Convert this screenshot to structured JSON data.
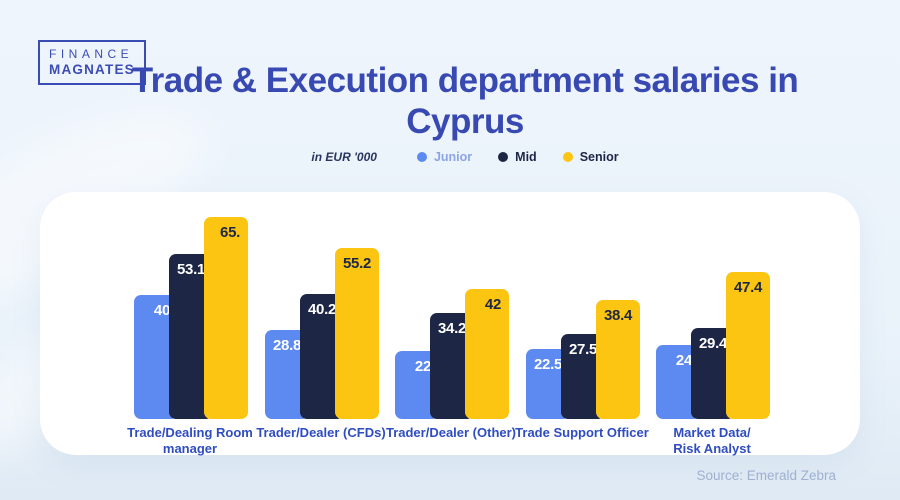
{
  "logo": {
    "line1": "FINANCE",
    "line2": "MAGNATES"
  },
  "title": "Trade & Execution department salaries in Cyprus",
  "legend": {
    "unit_label": "in EUR '000",
    "items": [
      {
        "label": "Junior",
        "color": "#5C8AF0",
        "text_color": "#8CA4E8"
      },
      {
        "label": "Mid",
        "color": "#1D2745",
        "text_color": "#1D2745"
      },
      {
        "label": "Senior",
        "color": "#FCC511",
        "text_color": "#1D2745"
      }
    ]
  },
  "source": "Source: Emerald Zebra",
  "colors": {
    "background": "#EAF3FA",
    "card": "#FFFFFF",
    "title_text": "#3849B2",
    "category_text": "#2F4DC1",
    "junior_bar": "#5C8AF0",
    "mid_bar": "#1D2745",
    "senior_bar": "#FCC511",
    "source_text": "#9FB0D0"
  },
  "chart_data": {
    "type": "bar",
    "title": "Trade & Execution department salaries in Cyprus",
    "unit": "EUR '000",
    "categories": [
      "Trade/Dealing Room\nmanager",
      "Trader/Dealer (CFDs)",
      "Trader/Dealer (Other)",
      "Trade Support Officer",
      "Market Data/\nRisk Analyst"
    ],
    "series": [
      {
        "name": "Junior",
        "color": "#5C8AF0",
        "label_color": "#FFFFFF",
        "values": [
          40,
          28.8,
          22,
          22.5,
          24
        ],
        "display": [
          "40",
          "28.8",
          "22",
          "22.5",
          "24"
        ]
      },
      {
        "name": "Mid",
        "color": "#1D2745",
        "label_color": "#FFFFFF",
        "values": [
          53.1,
          40.2,
          34.2,
          27.5,
          29.4
        ],
        "display": [
          "53.1",
          "40.2",
          "34.2",
          "27.5",
          "29.4"
        ]
      },
      {
        "name": "Senior",
        "color": "#FCC511",
        "label_color": "#1D2745",
        "values": [
          65,
          55.2,
          42,
          38.4,
          47.4
        ],
        "display": [
          "65.",
          "55.2",
          "42",
          "38.4",
          "47.4"
        ]
      }
    ],
    "ylim": [
      0,
      65
    ],
    "value_labels": true,
    "legend_position": "top",
    "grid": false,
    "source": "Source: Emerald Zebra"
  }
}
